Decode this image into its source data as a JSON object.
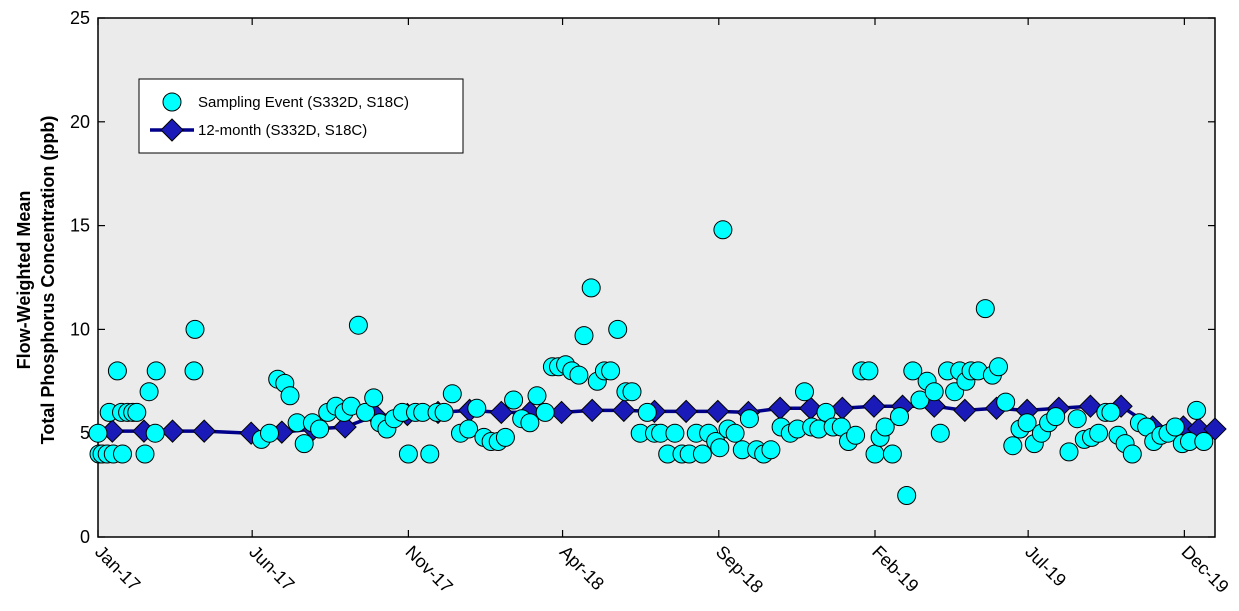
{
  "chart_data": {
    "type": "scatter",
    "ylabel_lines": [
      "Flow-Weighted Mean",
      "Total Phosphorus Concentration (ppb)"
    ],
    "ylim": [
      0,
      25
    ],
    "yticks": [
      0,
      5,
      10,
      15,
      20,
      25
    ],
    "xticks": [
      {
        "label": "Jan-17",
        "date": "2017-01-01"
      },
      {
        "label": "Jun-17",
        "date": "2017-06-01"
      },
      {
        "label": "Nov-17",
        "date": "2017-11-01"
      },
      {
        "label": "Apr-18",
        "date": "2018-04-01"
      },
      {
        "label": "Sep-18",
        "date": "2018-09-01"
      },
      {
        "label": "Feb-19",
        "date": "2019-02-01"
      },
      {
        "label": "Jul-19",
        "date": "2019-07-01"
      },
      {
        "label": "Dec-19",
        "date": "2019-12-01"
      }
    ],
    "xlim": [
      "2017-01-01",
      "2019-12-31"
    ],
    "grid": false,
    "legend_position": "top-left",
    "colors": {
      "plot_bg": "#EBEBEB",
      "marker_fill": "#00FFFF",
      "line": "#00008B",
      "diamond_fill": "#1A1AB8"
    },
    "series": [
      {
        "name": "Sampling Event (S332D, S18C)",
        "type": "scatter",
        "points": [
          [
            "2017-01-01",
            5
          ],
          [
            "2017-01-02",
            4
          ],
          [
            "2017-01-05",
            4
          ],
          [
            "2017-01-10",
            4
          ],
          [
            "2017-01-12",
            6
          ],
          [
            "2017-01-16",
            4
          ],
          [
            "2017-01-20",
            8
          ],
          [
            "2017-01-24",
            6
          ],
          [
            "2017-01-25",
            4
          ],
          [
            "2017-01-30",
            6
          ],
          [
            "2017-02-04",
            6
          ],
          [
            "2017-02-08",
            6
          ],
          [
            "2017-02-16",
            4
          ],
          [
            "2017-02-20",
            7
          ],
          [
            "2017-02-26",
            5
          ],
          [
            "2017-02-27",
            8
          ],
          [
            "2017-04-05",
            8
          ],
          [
            "2017-04-06",
            10
          ],
          [
            "2017-06-10",
            4.7
          ],
          [
            "2017-06-18",
            5
          ],
          [
            "2017-06-26",
            7.6
          ],
          [
            "2017-07-03",
            7.4
          ],
          [
            "2017-07-08",
            6.8
          ],
          [
            "2017-07-15",
            5.5
          ],
          [
            "2017-07-22",
            4.5
          ],
          [
            "2017-07-30",
            5.5
          ],
          [
            "2017-08-06",
            5.2
          ],
          [
            "2017-08-14",
            6
          ],
          [
            "2017-08-22",
            6.3
          ],
          [
            "2017-08-30",
            6
          ],
          [
            "2017-09-06",
            6.3
          ],
          [
            "2017-09-13",
            10.2
          ],
          [
            "2017-09-20",
            6
          ],
          [
            "2017-09-28",
            6.7
          ],
          [
            "2017-10-04",
            5.5
          ],
          [
            "2017-10-11",
            5.2
          ],
          [
            "2017-10-18",
            5.7
          ],
          [
            "2017-10-26",
            6
          ],
          [
            "2017-11-01",
            4
          ],
          [
            "2017-11-08",
            6
          ],
          [
            "2017-11-15",
            6
          ],
          [
            "2017-11-22",
            4
          ],
          [
            "2017-11-29",
            6
          ],
          [
            "2017-12-06",
            6
          ],
          [
            "2017-12-14",
            6.9
          ],
          [
            "2017-12-22",
            5
          ],
          [
            "2017-12-30",
            5.2
          ],
          [
            "2018-01-07",
            6.2
          ],
          [
            "2018-01-14",
            4.8
          ],
          [
            "2018-01-21",
            4.6
          ],
          [
            "2018-01-28",
            4.6
          ],
          [
            "2018-02-04",
            4.8
          ],
          [
            "2018-02-12",
            6.6
          ],
          [
            "2018-02-20",
            5.7
          ],
          [
            "2018-02-28",
            5.5
          ],
          [
            "2018-03-07",
            6.8
          ],
          [
            "2018-03-15",
            6
          ],
          [
            "2018-03-22",
            8.2
          ],
          [
            "2018-03-28",
            8.2
          ],
          [
            "2018-04-04",
            8.3
          ],
          [
            "2018-04-10",
            8
          ],
          [
            "2018-04-17",
            7.8
          ],
          [
            "2018-04-22",
            9.7
          ],
          [
            "2018-04-29",
            12
          ],
          [
            "2018-05-05",
            7.5
          ],
          [
            "2018-05-12",
            8
          ],
          [
            "2018-05-18",
            8
          ],
          [
            "2018-05-25",
            10
          ],
          [
            "2018-06-02",
            7
          ],
          [
            "2018-06-08",
            7
          ],
          [
            "2018-06-16",
            5
          ],
          [
            "2018-06-23",
            6
          ],
          [
            "2018-06-30",
            5
          ],
          [
            "2018-07-06",
            5
          ],
          [
            "2018-07-13",
            4
          ],
          [
            "2018-07-20",
            5
          ],
          [
            "2018-07-27",
            4
          ],
          [
            "2018-08-03",
            4
          ],
          [
            "2018-08-10",
            5
          ],
          [
            "2018-08-16",
            4
          ],
          [
            "2018-08-22",
            5
          ],
          [
            "2018-08-29",
            4.6
          ],
          [
            "2018-09-02",
            4.3
          ],
          [
            "2018-09-05",
            14.8
          ],
          [
            "2018-09-10",
            5.2
          ],
          [
            "2018-09-17",
            5
          ],
          [
            "2018-09-24",
            4.2
          ],
          [
            "2018-10-01",
            5.7
          ],
          [
            "2018-10-08",
            4.2
          ],
          [
            "2018-10-15",
            4
          ],
          [
            "2018-10-22",
            4.2
          ],
          [
            "2018-11-01",
            5.3
          ],
          [
            "2018-11-10",
            5
          ],
          [
            "2018-11-17",
            5.2
          ],
          [
            "2018-11-24",
            7
          ],
          [
            "2018-12-01",
            5.3
          ],
          [
            "2018-12-08",
            5.2
          ],
          [
            "2018-12-15",
            6
          ],
          [
            "2018-12-22",
            5.3
          ],
          [
            "2018-12-30",
            5.3
          ],
          [
            "2019-01-06",
            4.6
          ],
          [
            "2019-01-13",
            4.9
          ],
          [
            "2019-01-19",
            8
          ],
          [
            "2019-01-26",
            8
          ],
          [
            "2019-02-01",
            4
          ],
          [
            "2019-02-06",
            4.8
          ],
          [
            "2019-02-11",
            5.3
          ],
          [
            "2019-02-18",
            4
          ],
          [
            "2019-02-25",
            5.8
          ],
          [
            "2019-03-04",
            2
          ],
          [
            "2019-03-10",
            8
          ],
          [
            "2019-03-17",
            6.6
          ],
          [
            "2019-03-24",
            7.5
          ],
          [
            "2019-03-31",
            7
          ],
          [
            "2019-04-06",
            5
          ],
          [
            "2019-04-13",
            8
          ],
          [
            "2019-04-20",
            7
          ],
          [
            "2019-04-25",
            8
          ],
          [
            "2019-05-01",
            7.5
          ],
          [
            "2019-05-06",
            8
          ],
          [
            "2019-05-13",
            8
          ],
          [
            "2019-05-20",
            11
          ],
          [
            "2019-05-27",
            7.8
          ],
          [
            "2019-06-02",
            8.2
          ],
          [
            "2019-06-09",
            6.5
          ],
          [
            "2019-06-16",
            4.4
          ],
          [
            "2019-06-23",
            5.2
          ],
          [
            "2019-06-30",
            5.5
          ],
          [
            "2019-07-07",
            4.5
          ],
          [
            "2019-07-14",
            5
          ],
          [
            "2019-07-21",
            5.5
          ],
          [
            "2019-07-28",
            5.8
          ],
          [
            "2019-08-10",
            4.1
          ],
          [
            "2019-08-18",
            5.7
          ],
          [
            "2019-08-25",
            4.7
          ],
          [
            "2019-09-01",
            4.8
          ],
          [
            "2019-09-08",
            5
          ],
          [
            "2019-09-15",
            6
          ],
          [
            "2019-09-20",
            6
          ],
          [
            "2019-09-27",
            4.9
          ],
          [
            "2019-10-04",
            4.5
          ],
          [
            "2019-10-11",
            4
          ],
          [
            "2019-10-18",
            5.5
          ],
          [
            "2019-10-25",
            5.3
          ],
          [
            "2019-11-01",
            4.6
          ],
          [
            "2019-11-08",
            4.9
          ],
          [
            "2019-11-15",
            5
          ],
          [
            "2019-11-22",
            5.3
          ],
          [
            "2019-11-29",
            4.5
          ],
          [
            "2019-12-06",
            4.6
          ],
          [
            "2019-12-13",
            6.1
          ],
          [
            "2019-12-20",
            4.6
          ]
        ]
      },
      {
        "name": "12-month (S332D, S18C)",
        "type": "line",
        "points": [
          [
            "2017-01-15",
            5.1
          ],
          [
            "2017-02-15",
            5.1
          ],
          [
            "2017-03-15",
            5.1
          ],
          [
            "2017-04-15",
            5.1
          ],
          [
            "2017-05-31",
            5.0
          ],
          [
            "2017-06-30",
            5.05
          ],
          [
            "2017-07-31",
            5.2
          ],
          [
            "2017-08-31",
            5.3
          ],
          [
            "2017-09-30",
            5.85
          ],
          [
            "2017-10-31",
            5.9
          ],
          [
            "2017-11-30",
            6.0
          ],
          [
            "2017-12-31",
            6.1
          ],
          [
            "2018-01-31",
            6.0
          ],
          [
            "2018-02-28",
            6.0
          ],
          [
            "2018-03-31",
            6.0
          ],
          [
            "2018-04-30",
            6.1
          ],
          [
            "2018-05-31",
            6.1
          ],
          [
            "2018-06-30",
            6.05
          ],
          [
            "2018-07-31",
            6.05
          ],
          [
            "2018-08-31",
            6.05
          ],
          [
            "2018-09-30",
            6.0
          ],
          [
            "2018-10-31",
            6.2
          ],
          [
            "2018-11-30",
            6.2
          ],
          [
            "2018-12-31",
            6.2
          ],
          [
            "2019-01-31",
            6.3
          ],
          [
            "2019-02-28",
            6.3
          ],
          [
            "2019-03-31",
            6.3
          ],
          [
            "2019-04-30",
            6.1
          ],
          [
            "2019-05-31",
            6.2
          ],
          [
            "2019-06-30",
            6.1
          ],
          [
            "2019-07-31",
            6.2
          ],
          [
            "2019-08-31",
            6.3
          ],
          [
            "2019-09-30",
            6.3
          ],
          [
            "2019-10-31",
            5.3
          ],
          [
            "2019-11-30",
            5.3
          ],
          [
            "2019-12-15",
            5.2
          ],
          [
            "2019-12-31",
            5.2
          ]
        ]
      }
    ]
  }
}
